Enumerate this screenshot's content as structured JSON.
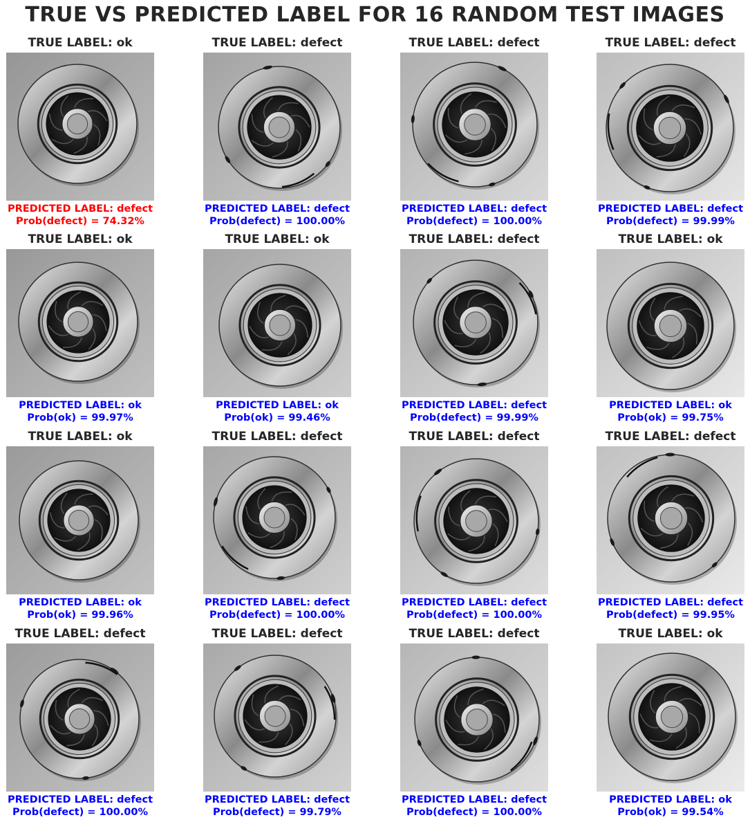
{
  "title": "TRUE VS PREDICTED LABEL FOR 16 RANDOM TEST IMAGES",
  "colors": {
    "correct": "#0000ff",
    "wrong": "#ff0000",
    "heading": "#262626"
  },
  "samples": [
    {
      "true_label": "TRUE LABEL: ok",
      "pred_label": "PREDICTED LABEL: defect",
      "prob": "Prob(defect) = 74.32%",
      "correct": false,
      "defect": false
    },
    {
      "true_label": "TRUE LABEL: defect",
      "pred_label": "PREDICTED LABEL: defect",
      "prob": "Prob(defect) = 100.00%",
      "correct": true,
      "defect": true
    },
    {
      "true_label": "TRUE LABEL: defect",
      "pred_label": "PREDICTED LABEL: defect",
      "prob": "Prob(defect) = 100.00%",
      "correct": true,
      "defect": true
    },
    {
      "true_label": "TRUE LABEL: defect",
      "pred_label": "PREDICTED LABEL: defect",
      "prob": "Prob(defect) = 99.99%",
      "correct": true,
      "defect": true
    },
    {
      "true_label": "TRUE LABEL: ok",
      "pred_label": "PREDICTED LABEL: ok",
      "prob": "Prob(ok) = 99.97%",
      "correct": true,
      "defect": false
    },
    {
      "true_label": "TRUE LABEL: ok",
      "pred_label": "PREDICTED LABEL: ok",
      "prob": "Prob(ok) = 99.46%",
      "correct": true,
      "defect": false
    },
    {
      "true_label": "TRUE LABEL: defect",
      "pred_label": "PREDICTED LABEL: defect",
      "prob": "Prob(defect) = 99.99%",
      "correct": true,
      "defect": true
    },
    {
      "true_label": "TRUE LABEL: ok",
      "pred_label": "PREDICTED LABEL: ok",
      "prob": "Prob(ok) = 99.75%",
      "correct": true,
      "defect": false
    },
    {
      "true_label": "TRUE LABEL: ok",
      "pred_label": "PREDICTED LABEL: ok",
      "prob": "Prob(ok) = 99.96%",
      "correct": true,
      "defect": false
    },
    {
      "true_label": "TRUE LABEL: defect",
      "pred_label": "PREDICTED LABEL: defect",
      "prob": "Prob(defect) = 100.00%",
      "correct": true,
      "defect": true
    },
    {
      "true_label": "TRUE LABEL: defect",
      "pred_label": "PREDICTED LABEL: defect",
      "prob": "Prob(defect) = 100.00%",
      "correct": true,
      "defect": true
    },
    {
      "true_label": "TRUE LABEL: defect",
      "pred_label": "PREDICTED LABEL: defect",
      "prob": "Prob(defect) = 99.95%",
      "correct": true,
      "defect": true
    },
    {
      "true_label": "TRUE LABEL: defect",
      "pred_label": "PREDICTED LABEL: defect",
      "prob": "Prob(defect) = 100.00%",
      "correct": true,
      "defect": true
    },
    {
      "true_label": "TRUE LABEL: defect",
      "pred_label": "PREDICTED LABEL: defect",
      "prob": "Prob(defect) = 99.79%",
      "correct": true,
      "defect": true
    },
    {
      "true_label": "TRUE LABEL: defect",
      "pred_label": "PREDICTED LABEL: defect",
      "prob": "Prob(defect) = 100.00%",
      "correct": true,
      "defect": true
    },
    {
      "true_label": "TRUE LABEL: ok",
      "pred_label": "PREDICTED LABEL: ok",
      "prob": "Prob(ok) = 99.54%",
      "correct": true,
      "defect": false
    }
  ]
}
